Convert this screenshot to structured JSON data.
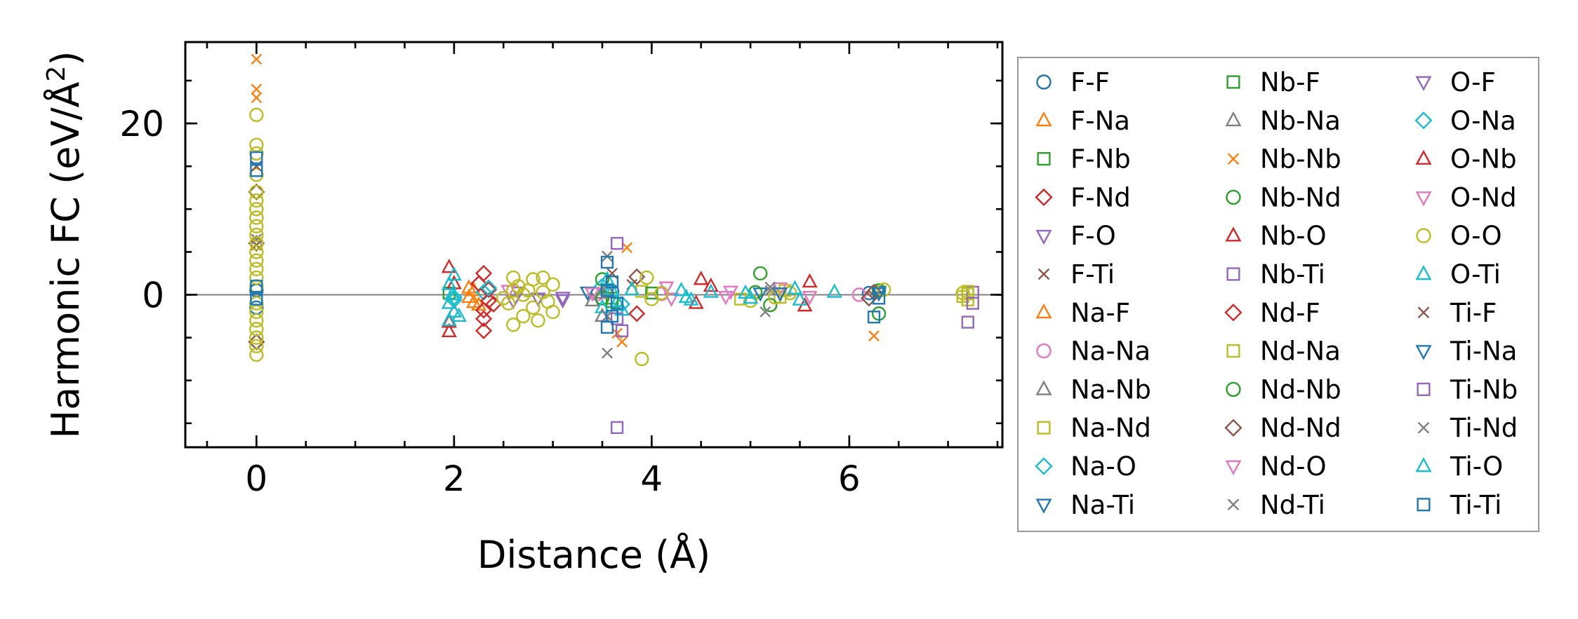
{
  "chart_data": {
    "type": "scatter",
    "title": "",
    "xlabel": "Distance (Å)",
    "ylabel_main": "Harmonic FC (eV/Å",
    "ylabel_sup": "2",
    "ylabel_close": ")",
    "xlim": [
      -0.72,
      7.55
    ],
    "ylim": [
      -17.8,
      29.5
    ],
    "xticks": [
      0,
      2,
      4,
      6
    ],
    "xtick_labels": [
      "0",
      "2",
      "4",
      "6"
    ],
    "yticks": [
      0,
      20
    ],
    "ytick_labels": [
      "0",
      "20"
    ],
    "x_minor_step": 0.5,
    "y_minor_step": 5,
    "zero_line": true,
    "legend_position": "outside-right",
    "legend_columns": 3,
    "series": [
      {
        "name": "F-F",
        "marker": "circle",
        "color": "#1f77b4",
        "points": [
          [
            0,
            0.5
          ],
          [
            0,
            -1.5
          ],
          [
            3.6,
            0.4
          ],
          [
            6.2,
            0.2
          ]
        ]
      },
      {
        "name": "F-Na",
        "marker": "triangle-up",
        "color": "#ff7f0e",
        "points": [
          [
            2.15,
            -0.3
          ],
          [
            2.2,
            0.5
          ],
          [
            2.25,
            -1.2
          ]
        ]
      },
      {
        "name": "F-Nb",
        "marker": "square",
        "color": "#2ca02c",
        "points": [
          [
            1.95,
            0.2
          ],
          [
            3.6,
            -0.4
          ]
        ]
      },
      {
        "name": "F-Nd",
        "marker": "diamond",
        "color": "#d62728",
        "points": [
          [
            2.3,
            2.5
          ],
          [
            2.3,
            -2.8
          ],
          [
            2.35,
            0.6
          ],
          [
            2.3,
            -4.2
          ],
          [
            2.4,
            -1.1
          ]
        ]
      },
      {
        "name": "F-O",
        "marker": "triangle-down",
        "color": "#9467bd",
        "points": [
          [
            2.65,
            0.3
          ],
          [
            2.85,
            -0.4
          ],
          [
            3.1,
            -0.6
          ]
        ]
      },
      {
        "name": "F-Ti",
        "marker": "x",
        "color": "#8c564b",
        "points": [
          [
            0,
            5.8
          ],
          [
            3.8,
            1.2
          ]
        ]
      },
      {
        "name": "Na-F",
        "marker": "triangle-up",
        "color": "#ff7f0e",
        "points": [
          [
            2.15,
            0.8
          ],
          [
            2.2,
            -0.9
          ]
        ]
      },
      {
        "name": "Na-Na",
        "marker": "circle",
        "color": "#e377c2",
        "points": [
          [
            3.45,
            0.1
          ],
          [
            6.1,
            0
          ],
          [
            4.1,
            0.1
          ]
        ]
      },
      {
        "name": "Na-Nb",
        "marker": "triangle-up",
        "color": "#7f7f7f",
        "points": [
          [
            3.5,
            -2.5
          ],
          [
            3.55,
            0.6
          ]
        ]
      },
      {
        "name": "Na-Nd",
        "marker": "square",
        "color": "#bcbd22",
        "points": [
          [
            3.9,
            0.4
          ],
          [
            5.3,
            -0.3
          ],
          [
            7.2,
            0.1
          ],
          [
            7.2,
            -0.6
          ]
        ]
      },
      {
        "name": "Na-O",
        "marker": "diamond",
        "color": "#17becf",
        "points": [
          [
            2.0,
            -0.6
          ],
          [
            2.3,
            0.3
          ],
          [
            3.5,
            1.0
          ],
          [
            3.7,
            -1.1
          ]
        ]
      },
      {
        "name": "Na-Ti",
        "marker": "triangle-down",
        "color": "#1f77b4",
        "points": [
          [
            3.35,
            0.3
          ],
          [
            5.1,
            0.2
          ],
          [
            6.3,
            0.4
          ]
        ]
      },
      {
        "name": "Nb-F",
        "marker": "square",
        "color": "#2ca02c",
        "points": [
          [
            3.6,
            -0.8
          ],
          [
            4.0,
            0.2
          ]
        ]
      },
      {
        "name": "Nb-Na",
        "marker": "triangle-up",
        "color": "#7f7f7f",
        "points": [
          [
            3.4,
            -0.7
          ],
          [
            3.5,
            0.2
          ]
        ]
      },
      {
        "name": "Nb-Nb",
        "marker": "x",
        "color": "#ff7f0e",
        "points": [
          [
            0,
            27.5
          ],
          [
            0,
            24
          ],
          [
            0,
            23
          ],
          [
            3.65,
            -4.5
          ],
          [
            3.75,
            5.5
          ],
          [
            3.7,
            -5.5
          ],
          [
            6.25,
            -4.8
          ]
        ]
      },
      {
        "name": "Nb-Nd",
        "marker": "circle",
        "color": "#2ca02c",
        "points": [
          [
            3.5,
            1.8
          ],
          [
            5.1,
            2.5
          ],
          [
            5.2,
            -1.2
          ],
          [
            6.3,
            -2.2
          ],
          [
            6.3,
            0.5
          ]
        ]
      },
      {
        "name": "Nb-O",
        "marker": "triangle-up",
        "color": "#d62728",
        "points": [
          [
            1.95,
            3.2
          ],
          [
            1.95,
            -4.3
          ],
          [
            1.95,
            -3.2
          ],
          [
            2.0,
            1.3
          ],
          [
            4.5,
            1.8
          ],
          [
            5.6,
            1.5
          ],
          [
            5.55,
            -1.3
          ]
        ]
      },
      {
        "name": "Nb-Ti",
        "marker": "square",
        "color": "#9467bd",
        "points": [
          [
            3.65,
            -15.5
          ],
          [
            3.65,
            6
          ],
          [
            3.65,
            -2.8
          ],
          [
            7.2,
            -3.2
          ],
          [
            7.25,
            0.3
          ]
        ]
      },
      {
        "name": "Nd-F",
        "marker": "diamond",
        "color": "#d62728",
        "points": [
          [
            2.25,
            1.3
          ],
          [
            2.3,
            -1.8
          ],
          [
            2.35,
            -0.7
          ],
          [
            3.85,
            -2.2
          ]
        ]
      },
      {
        "name": "Nd-Na",
        "marker": "square",
        "color": "#bcbd22",
        "points": [
          [
            4.9,
            -0.5
          ],
          [
            5.35,
            0.5
          ],
          [
            7.15,
            -0.2
          ],
          [
            7.2,
            0.4
          ]
        ]
      },
      {
        "name": "Nd-Nb",
        "marker": "circle",
        "color": "#2ca02c",
        "points": [
          [
            3.5,
            -0.4
          ],
          [
            5.05,
            0.3
          ]
        ]
      },
      {
        "name": "Nd-Nd",
        "marker": "diamond",
        "color": "#8c564b",
        "points": [
          [
            0,
            12
          ],
          [
            0,
            6
          ],
          [
            0,
            -5.5
          ],
          [
            3.85,
            2.1
          ],
          [
            6.2,
            -0.4
          ],
          [
            6.25,
            0.3
          ]
        ]
      },
      {
        "name": "Nd-O",
        "marker": "triangle-down",
        "color": "#e377c2",
        "points": [
          [
            2.55,
            0.5
          ],
          [
            3.4,
            0.2
          ],
          [
            4.15,
            0.9
          ],
          [
            4.8,
            0.4
          ],
          [
            5.3,
            0.8
          ],
          [
            5.6,
            -0.2
          ]
        ]
      },
      {
        "name": "Nd-Ti",
        "marker": "x",
        "color": "#7f7f7f",
        "points": [
          [
            0,
            6.5
          ],
          [
            3.55,
            -6.8
          ],
          [
            3.55,
            4.5
          ],
          [
            5.15,
            -2
          ],
          [
            5.2,
            0.5
          ]
        ]
      },
      {
        "name": "O-F",
        "marker": "triangle-down",
        "color": "#9467bd",
        "points": [
          [
            2.6,
            -0.7
          ],
          [
            3.1,
            -0.3
          ]
        ]
      },
      {
        "name": "O-Na",
        "marker": "diamond",
        "color": "#17becf",
        "points": [
          [
            2.0,
            -0.3
          ],
          [
            2.35,
            0.8
          ]
        ]
      },
      {
        "name": "O-Nb",
        "marker": "triangle-up",
        "color": "#d62728",
        "points": [
          [
            2.0,
            -2.0
          ],
          [
            4.45,
            -1.0
          ],
          [
            4.6,
            1.0
          ]
        ]
      },
      {
        "name": "O-Nd",
        "marker": "triangle-down",
        "color": "#e377c2",
        "points": [
          [
            4.2,
            -0.4
          ],
          [
            4.75,
            -0.2
          ]
        ]
      },
      {
        "name": "O-O",
        "marker": "circle",
        "color": "#bcbd22",
        "points": [
          [
            0,
            21
          ],
          [
            0,
            17.5
          ],
          [
            0,
            16.5
          ],
          [
            0,
            14
          ],
          [
            0,
            12
          ],
          [
            0,
            11
          ],
          [
            0,
            10
          ],
          [
            0,
            9
          ],
          [
            0,
            8
          ],
          [
            0,
            7
          ],
          [
            0,
            6
          ],
          [
            0,
            5
          ],
          [
            0,
            4
          ],
          [
            0,
            3
          ],
          [
            0,
            2
          ],
          [
            0,
            1
          ],
          [
            0,
            -1
          ],
          [
            0,
            -2
          ],
          [
            0,
            -3
          ],
          [
            0,
            -4
          ],
          [
            0,
            -5
          ],
          [
            0,
            -6
          ],
          [
            0,
            -7
          ],
          [
            2.55,
            -1
          ],
          [
            2.6,
            2
          ],
          [
            2.6,
            -3.5
          ],
          [
            2.65,
            1
          ],
          [
            2.7,
            -2.5
          ],
          [
            2.75,
            0.5
          ],
          [
            2.8,
            1.8
          ],
          [
            2.8,
            -1.5
          ],
          [
            2.85,
            -3
          ],
          [
            2.9,
            2
          ],
          [
            2.9,
            0.3
          ],
          [
            2.95,
            -0.8
          ],
          [
            3.0,
            1.2
          ],
          [
            3.0,
            -2
          ],
          [
            2.7,
            0
          ],
          [
            2.6,
            0.5
          ],
          [
            2.5,
            -0.4
          ],
          [
            3.9,
            -7.5
          ],
          [
            3.95,
            2
          ],
          [
            4.0,
            -0.5
          ],
          [
            4.1,
            0.2
          ],
          [
            5.0,
            -0.7
          ],
          [
            5.25,
            -0.3
          ],
          [
            5.4,
            0.2
          ],
          [
            6.35,
            0.6
          ],
          [
            7.15,
            0.2
          ]
        ]
      },
      {
        "name": "O-Ti",
        "marker": "triangle-up",
        "color": "#17becf",
        "points": [
          [
            1.95,
            -1
          ],
          [
            1.95,
            1.2
          ],
          [
            1.95,
            -3
          ],
          [
            1.98,
            0
          ],
          [
            2.0,
            -2
          ],
          [
            3.5,
            -1.5
          ],
          [
            3.55,
            1.8
          ],
          [
            3.6,
            0.5
          ],
          [
            3.7,
            -1.8
          ],
          [
            3.8,
            0.6
          ],
          [
            4.3,
            0.5
          ],
          [
            4.4,
            -0.6
          ],
          [
            4.6,
            0.3
          ],
          [
            4.95,
            0.2
          ],
          [
            5.45,
            0.7
          ],
          [
            5.5,
            -0.6
          ],
          [
            5.85,
            0.3
          ]
        ]
      },
      {
        "name": "Ti-F",
        "marker": "x",
        "color": "#8c564b",
        "points": [
          [
            0,
            15
          ],
          [
            3.6,
            2.5
          ]
        ]
      },
      {
        "name": "Ti-Na",
        "marker": "triangle-down",
        "color": "#1f77b4",
        "points": [
          [
            5.3,
            0.2
          ],
          [
            6.3,
            0.2
          ]
        ]
      },
      {
        "name": "Ti-Nb",
        "marker": "square",
        "color": "#9467bd",
        "points": [
          [
            3.7,
            -4.2
          ],
          [
            7.25,
            -1.0
          ]
        ]
      },
      {
        "name": "Ti-Nd",
        "marker": "x",
        "color": "#7f7f7f",
        "points": [
          [
            3.55,
            -2.5
          ],
          [
            5.2,
            0.9
          ]
        ]
      },
      {
        "name": "Ti-O",
        "marker": "triangle-up",
        "color": "#17becf",
        "points": [
          [
            2.05,
            -2.5
          ],
          [
            2.0,
            2.3
          ],
          [
            3.65,
            -0.8
          ],
          [
            4.35,
            -0.3
          ],
          [
            5.0,
            -0.4
          ]
        ]
      },
      {
        "name": "Ti-Ti",
        "marker": "square",
        "color": "#1f77b4",
        "points": [
          [
            0,
            16
          ],
          [
            0,
            14.5
          ],
          [
            0,
            1
          ],
          [
            0,
            -0.5
          ],
          [
            3.55,
            -3.8
          ],
          [
            3.55,
            3.8
          ],
          [
            3.6,
            -2.5
          ],
          [
            3.6,
            1.5
          ],
          [
            3.65,
            -1.0
          ],
          [
            3.55,
            0.5
          ],
          [
            6.25,
            -2.6
          ],
          [
            6.3,
            -0.4
          ]
        ]
      }
    ]
  }
}
